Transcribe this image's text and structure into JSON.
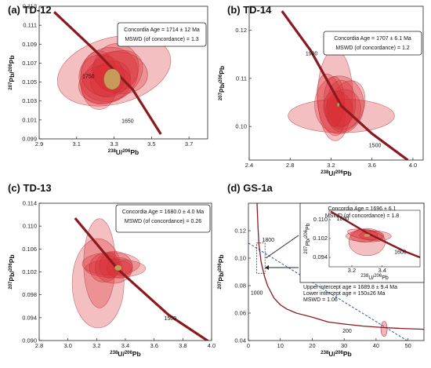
{
  "chart_data": [
    {
      "id": "a",
      "type": "scatter",
      "title": "(a) TD-12",
      "xlabel": "238U/206Pb",
      "ylabel": "207Pb/206Pb",
      "xlim": [
        2.9,
        3.8
      ],
      "ylim": [
        0.099,
        0.113
      ],
      "xticks": [
        "2.9",
        "3.1",
        "3.3",
        "3.5",
        "3.7"
      ],
      "yticks": [
        "0.099",
        "0.101",
        "0.103",
        "0.105",
        "0.107",
        "0.109",
        "0.111",
        "0.113"
      ],
      "concordia": [
        [
          2.98,
          0.1124
        ],
        [
          3.2,
          0.1083
        ],
        [
          3.4,
          0.1042
        ],
        [
          3.55,
          0.0995
        ]
      ],
      "age_labels": [
        {
          "text": "1750",
          "x": 3.13,
          "y": 0.1054
        },
        {
          "text": "1650",
          "x": 3.34,
          "y": 0.1007
        }
      ],
      "box": [
        "Concordia Age = 1714 ± 12 Ma",
        "MSWD (of concordance) = 1.3"
      ],
      "ellipses": [
        {
          "cx": 3.3,
          "cy": 0.1062,
          "rx": 0.31,
          "ry": 0.0035,
          "rot": -15
        },
        {
          "cx": 3.27,
          "cy": 0.1058,
          "rx": 0.16,
          "ry": 0.0028,
          "rot": -25
        },
        {
          "cx": 3.29,
          "cy": 0.1055,
          "rx": 0.18,
          "ry": 0.0024,
          "rot": -35
        },
        {
          "cx": 3.22,
          "cy": 0.1052,
          "rx": 0.1,
          "ry": 0.0031,
          "rot": 0
        },
        {
          "cx": 3.33,
          "cy": 0.106,
          "rx": 0.15,
          "ry": 0.0022,
          "rot": 10
        },
        {
          "cx": 3.25,
          "cy": 0.1048,
          "rx": 0.14,
          "ry": 0.002,
          "rot": -10
        },
        {
          "cx": 3.31,
          "cy": 0.1065,
          "rx": 0.12,
          "ry": 0.0026,
          "rot": 20
        },
        {
          "cx": 3.28,
          "cy": 0.1053,
          "rx": 0.11,
          "ry": 0.0018,
          "rot": -30
        },
        {
          "cx": 3.24,
          "cy": 0.1057,
          "rx": 0.12,
          "ry": 0.0021,
          "rot": 30
        }
      ],
      "mean": {
        "cx": 3.29,
        "cy": 0.1053,
        "rx": 0.045,
        "ry": 0.0011
      }
    },
    {
      "id": "b",
      "type": "scatter",
      "title": "(b) TD-14",
      "xlabel": "238U/206Pb",
      "ylabel": "207Pb/206Pb",
      "xlim": [
        2.4,
        4.1
      ],
      "ylim": [
        0.093,
        0.125
      ],
      "xticks": [
        "2.4",
        "2.8",
        "3.2",
        "3.6",
        "4.0"
      ],
      "yticks": [
        "0.10",
        "0.11",
        "0.12"
      ],
      "concordia": [
        [
          2.72,
          0.124
        ],
        [
          3.0,
          0.1158
        ],
        [
          3.3,
          0.1043
        ],
        [
          3.6,
          0.0985
        ],
        [
          3.95,
          0.093
        ]
      ],
      "age_labels": [
        {
          "text": "1900",
          "x": 2.95,
          "y": 0.1148
        },
        {
          "text": "1500",
          "x": 3.57,
          "y": 0.0957
        }
      ],
      "box": [
        "Concordia Age = 1707 ± 6.1 Ma",
        "MSWD (of concordance) = 1.2"
      ],
      "ellipses": [
        {
          "cx": 3.3,
          "cy": 0.1022,
          "rx": 0.52,
          "ry": 0.0035,
          "rot": 0
        },
        {
          "cx": 3.24,
          "cy": 0.1065,
          "rx": 0.17,
          "ry": 0.0095,
          "rot": 0
        },
        {
          "cx": 3.28,
          "cy": 0.1045,
          "rx": 0.24,
          "ry": 0.006,
          "rot": 0
        },
        {
          "cx": 3.35,
          "cy": 0.1042,
          "rx": 0.17,
          "ry": 0.0055,
          "rot": 20
        },
        {
          "cx": 3.2,
          "cy": 0.1045,
          "rx": 0.13,
          "ry": 0.0065,
          "rot": -10
        },
        {
          "cx": 3.3,
          "cy": 0.1048,
          "rx": 0.14,
          "ry": 0.0048,
          "rot": 0
        },
        {
          "cx": 3.32,
          "cy": 0.1035,
          "rx": 0.17,
          "ry": 0.0042,
          "rot": 10
        },
        {
          "cx": 3.23,
          "cy": 0.1052,
          "rx": 0.1,
          "ry": 0.0052,
          "rot": 0
        },
        {
          "cx": 3.27,
          "cy": 0.1036,
          "rx": 0.14,
          "ry": 0.0038,
          "rot": -15
        }
      ],
      "mean": {
        "cx": 3.27,
        "cy": 0.1045,
        "rx": 0.012,
        "ry": 0.0004
      }
    },
    {
      "id": "c",
      "type": "scatter",
      "title": "(c) TD-13",
      "xlabel": "238U/206Pb",
      "ylabel": "207Pb/206Pb",
      "xlim": [
        2.8,
        4.0
      ],
      "ylim": [
        0.09,
        0.114
      ],
      "xticks": [
        "2.8",
        "3.0",
        "3.2",
        "3.4",
        "3.6",
        "3.8",
        "4.0"
      ],
      "yticks": [
        "0.090",
        "0.094",
        "0.098",
        "0.102",
        "0.106",
        "0.110",
        "0.114"
      ],
      "concordia": [
        [
          3.05,
          0.1114
        ],
        [
          3.35,
          0.1024
        ],
        [
          3.7,
          0.0945
        ],
        [
          4.0,
          0.0895
        ]
      ],
      "age_labels": [
        {
          "text": "1500",
          "x": 3.67,
          "y": 0.0936
        }
      ],
      "box": [
        "Concordia Age = 1680.0 ± 4.0 Ma",
        "MSWD (of concordance) = 0.26"
      ],
      "ellipses": [
        {
          "cx": 3.21,
          "cy": 0.1,
          "rx": 0.18,
          "ry": 0.0078,
          "rot": 0
        },
        {
          "cx": 3.22,
          "cy": 0.1035,
          "rx": 0.11,
          "ry": 0.0078,
          "rot": 0
        },
        {
          "cx": 3.3,
          "cy": 0.1034,
          "rx": 0.2,
          "ry": 0.002,
          "rot": 0
        },
        {
          "cx": 3.33,
          "cy": 0.1026,
          "rx": 0.21,
          "ry": 0.0016,
          "rot": 0
        },
        {
          "cx": 3.32,
          "cy": 0.1028,
          "rx": 0.13,
          "ry": 0.0028,
          "rot": 0
        },
        {
          "cx": 3.25,
          "cy": 0.1027,
          "rx": 0.1,
          "ry": 0.0025,
          "rot": 0
        },
        {
          "cx": 3.36,
          "cy": 0.1027,
          "rx": 0.09,
          "ry": 0.0018,
          "rot": 0
        },
        {
          "cx": 3.38,
          "cy": 0.1026,
          "rx": 0.06,
          "ry": 0.0013,
          "rot": 0
        },
        {
          "cx": 3.29,
          "cy": 0.1031,
          "rx": 0.07,
          "ry": 0.0022,
          "rot": 0
        }
      ],
      "mean": {
        "cx": 3.35,
        "cy": 0.1027,
        "rx": 0.025,
        "ry": 0.0005
      }
    },
    {
      "id": "d",
      "type": "scatter",
      "title": "(d) GS-1a",
      "xlabel": "238U/206Pb",
      "ylabel": "207Pb/206Pb",
      "xlim": [
        0,
        55
      ],
      "ylim": [
        0.04,
        0.14
      ],
      "xticks": [
        "0",
        "10",
        "20",
        "30",
        "40",
        "50"
      ],
      "yticks": [
        "0.04",
        "0.06",
        "0.08",
        "0.10",
        "0.12"
      ],
      "concordia": [
        [
          2.7,
          0.14
        ],
        [
          3.0,
          0.123
        ],
        [
          3.3,
          0.11
        ],
        [
          4.0,
          0.097
        ],
        [
          5.0,
          0.087
        ],
        [
          6.0,
          0.08
        ],
        [
          8.0,
          0.071
        ],
        [
          10.0,
          0.066
        ],
        [
          12.0,
          0.063
        ],
        [
          15.0,
          0.06
        ],
        [
          20.0,
          0.057
        ],
        [
          25.0,
          0.0535
        ],
        [
          30.0,
          0.052
        ],
        [
          36.0,
          0.0505
        ],
        [
          42.0,
          0.0495
        ],
        [
          48.0,
          0.0488
        ],
        [
          55.0,
          0.0482
        ]
      ],
      "discordia": [
        [
          0,
          0.111
        ],
        [
          50,
          0.0395
        ]
      ],
      "age_labels": [
        {
          "text": "1800",
          "x": 4.3,
          "y": 0.112
        },
        {
          "text": "1000",
          "x": 0.7,
          "y": 0.0735
        },
        {
          "text": "200",
          "x": 29.5,
          "y": 0.0458
        }
      ],
      "box": [
        "Concordia Age = 1696 ± 6.1",
        "MSWD (of concordance) = 1.8"
      ],
      "intercepts": [
        "Upper intercept age = 1689.8 ± 9.4 Ma",
        "Lower intercept age = 150±26 Ma",
        "MSWD = 1.06"
      ],
      "lone_ellipse": {
        "cx": 42.5,
        "cy": 0.0485,
        "rx": 1.0,
        "ry": 0.0055
      },
      "inset": {
        "xlim": [
          3.05,
          3.65
        ],
        "ylim": [
          0.09,
          0.114
        ],
        "xticks": [
          "3.2",
          "3.4"
        ],
        "yticks": [
          "0.094",
          "0.102",
          "0.110"
        ],
        "xlabel": "238U/206Pb",
        "ylabel": "207Pb/206Pb",
        "concordia": [
          [
            3.06,
            0.1135
          ],
          [
            3.3,
            0.1044
          ],
          [
            3.55,
            0.0965
          ],
          [
            3.65,
            0.094
          ]
        ],
        "age_labels": [
          {
            "text": "1800",
            "x": 3.1,
            "y": 0.1096
          },
          {
            "text": "1600",
            "x": 3.48,
            "y": 0.0955
          }
        ],
        "ellipses": [
          {
            "cx": 3.3,
            "cy": 0.1005,
            "rx": 0.12,
            "ry": 0.0058,
            "rot": 0
          },
          {
            "cx": 3.31,
            "cy": 0.103,
            "rx": 0.15,
            "ry": 0.0024,
            "rot": 0
          },
          {
            "cx": 3.29,
            "cy": 0.1036,
            "rx": 0.12,
            "ry": 0.002,
            "rot": 10
          },
          {
            "cx": 3.28,
            "cy": 0.1032,
            "rx": 0.09,
            "ry": 0.0027,
            "rot": 0
          },
          {
            "cx": 3.33,
            "cy": 0.1033,
            "rx": 0.08,
            "ry": 0.0018,
            "rot": 0
          }
        ],
        "mean": {
          "cx": 3.3,
          "cy": 0.1033,
          "rx": 0.02,
          "ry": 0.0006
        }
      }
    }
  ],
  "colors": {
    "ellipse_fill": "#dc2b32",
    "ellipse_stroke": "#b3323a",
    "concordia": "#8b1a1f",
    "mean_fill": "#c79a5a",
    "discordia": "#2a5aa8"
  }
}
